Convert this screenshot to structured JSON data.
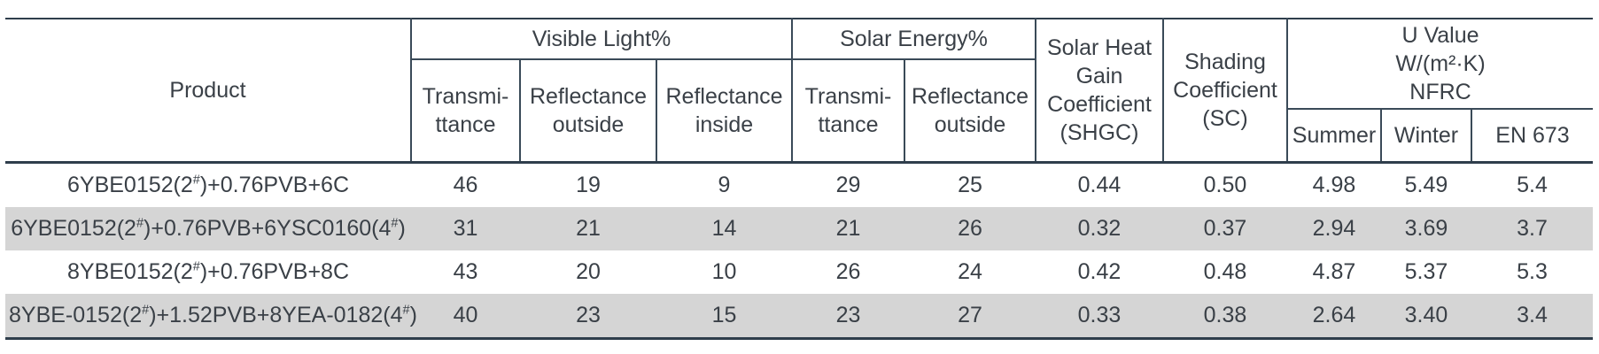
{
  "table": {
    "header": {
      "product": "Product",
      "groups": {
        "visible_light": "Visible Light%",
        "solar_energy": "Solar Energy%",
        "shgc": "Solar Heat\nGain\nCoefficient\n(SHGC)",
        "shading_coefficient": "Shading\nCoefficient\n(SC)",
        "u_value": "U Value\nW/(m²·K)\nNFRC"
      },
      "sub": {
        "vl_transmittance": "Transmi-\nttance",
        "vl_reflectance_outside": "Reflectance\noutside",
        "vl_reflectance_inside": "Reflectance\ninside",
        "se_transmittance": "Transmi-\nttance",
        "se_reflectance_outside": "Reflectance\noutside",
        "u_summer": "Summer",
        "u_winter": "Winter",
        "u_en673": "EN 673"
      }
    },
    "rows": [
      {
        "product": "6YBE0152(2#)+0.76PVB+6C",
        "shaded": false,
        "values": [
          "46",
          "19",
          "9",
          "29",
          "25",
          "0.44",
          "0.50",
          "4.98",
          "5.49",
          "5.4"
        ]
      },
      {
        "product": "6YBE0152(2#)+0.76PVB+6YSC0160(4#)",
        "shaded": true,
        "values": [
          "31",
          "21",
          "14",
          "21",
          "26",
          "0.32",
          "0.37",
          "2.94",
          "3.69",
          "3.7"
        ]
      },
      {
        "product": "8YBE0152(2#)+0.76PVB+8C",
        "shaded": false,
        "values": [
          "43",
          "20",
          "10",
          "26",
          "24",
          "0.42",
          "0.48",
          "4.87",
          "5.37",
          "5.3"
        ]
      },
      {
        "product": "8YBE-0152(2#)+1.52PVB+8YEA-0182(4#)",
        "shaded": true,
        "values": [
          "40",
          "23",
          "15",
          "23",
          "27",
          "0.33",
          "0.38",
          "2.64",
          "3.40",
          "3.4"
        ]
      }
    ]
  },
  "colors": {
    "border": "#2f3e4c",
    "row_shade": "#d5d5d5",
    "text": "#3a4047",
    "background": "#ffffff"
  }
}
